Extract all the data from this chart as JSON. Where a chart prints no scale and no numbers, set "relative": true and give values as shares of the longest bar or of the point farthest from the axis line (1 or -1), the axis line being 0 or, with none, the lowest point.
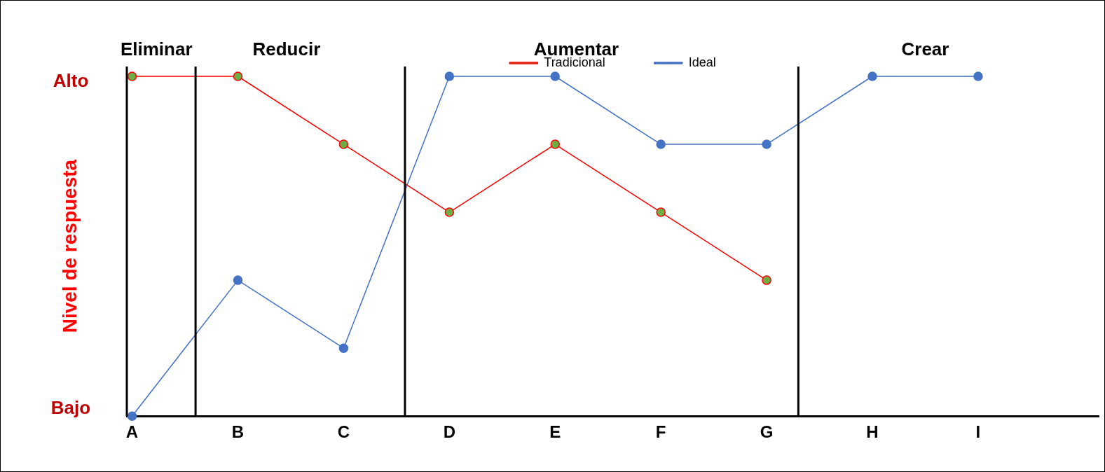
{
  "chart_data": {
    "type": "line",
    "ylabel": "Nivel de respuesta",
    "relative": true,
    "categories": [
      "A",
      "B",
      "C",
      "D",
      "E",
      "F",
      "G",
      "H",
      "I"
    ],
    "series": [
      {
        "name": "Tradicional",
        "color": "#ff0000",
        "colors": [
          "#70ad47",
          "#70ad47",
          "#70ad47",
          "#70ad47",
          "#70ad47",
          "#70ad47",
          "#70ad47",
          "#70ad47",
          "#70ad47"
        ],
        "values": [
          1,
          1,
          0.8,
          0.6,
          0.8,
          0.6,
          0.4,
          null,
          null
        ]
      },
      {
        "name": "Ideal",
        "color": "#4472c4",
        "values": [
          0,
          0.4,
          0.2,
          1,
          1,
          0.8,
          0.8,
          1,
          1
        ]
      }
    ],
    "annotations": [
      "Alto",
      "Bajo",
      "Eliminar",
      "Reducir",
      "Aumentar",
      "Crear"
    ],
    "grid": false,
    "legend": "top",
    "marker": "circle",
    "line_style": "solid"
  }
}
